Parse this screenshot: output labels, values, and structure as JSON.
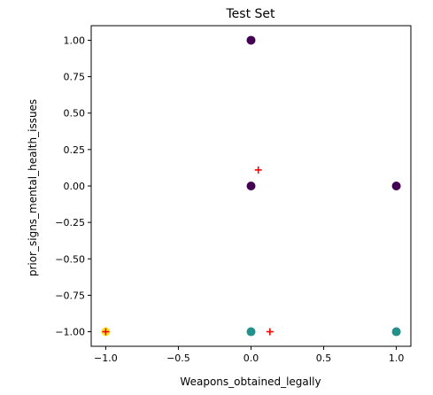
{
  "chart_data": {
    "type": "scatter",
    "title": "Test Set",
    "xlabel": "Weapons_obtained_legally",
    "ylabel": "prior_signs_mental_health_issues",
    "xlim": [
      -1.1,
      1.1
    ],
    "ylim": [
      -1.1,
      1.1
    ],
    "grid": false,
    "x_ticks": [
      -1.0,
      -0.5,
      0.0,
      0.5,
      1.0
    ],
    "x_tick_labels": [
      "−1.0",
      "−0.5",
      "0.0",
      "0.5",
      "1.0"
    ],
    "y_ticks": [
      1.0,
      0.75,
      0.5,
      0.25,
      0.0,
      -0.25,
      -0.5,
      -0.75,
      -1.0
    ],
    "y_tick_labels": [
      "1.00",
      "0.75",
      "0.50",
      "0.25",
      "0.00",
      "−0.25",
      "−0.50",
      "−0.75",
      "−1.00"
    ],
    "points": [
      {
        "x": 0.0,
        "y": 1.0,
        "color": "#440154",
        "marker": "circle"
      },
      {
        "x": 0.0,
        "y": 0.0,
        "color": "#440154",
        "marker": "circle"
      },
      {
        "x": 1.0,
        "y": 0.0,
        "color": "#440154",
        "marker": "circle"
      },
      {
        "x": -1.0,
        "y": -1.0,
        "color": "#fde725",
        "marker": "circle"
      },
      {
        "x": 0.0,
        "y": -1.0,
        "color": "#21918c",
        "marker": "circle"
      },
      {
        "x": 1.0,
        "y": -1.0,
        "color": "#21918c",
        "marker": "circle"
      }
    ],
    "plus_markers": [
      {
        "x": 0.05,
        "y": 0.11,
        "color": "#ff0000"
      },
      {
        "x": 0.13,
        "y": -1.0,
        "color": "#ff0000"
      },
      {
        "x": -1.0,
        "y": -1.0,
        "color": "#ff0000"
      }
    ]
  }
}
